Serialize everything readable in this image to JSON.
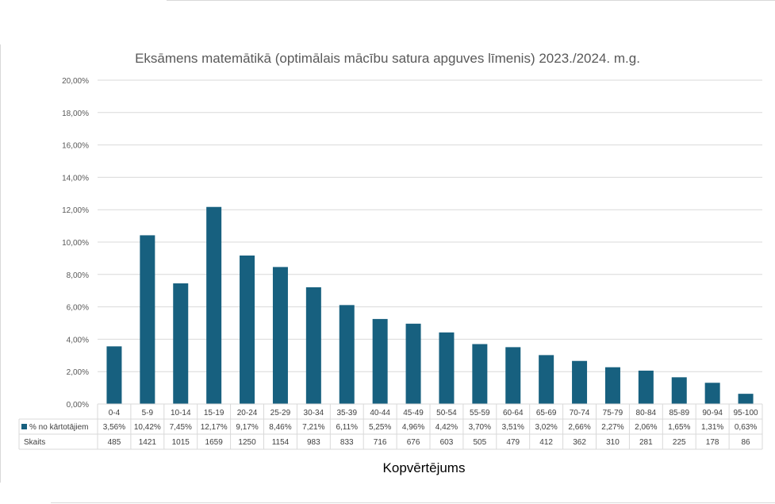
{
  "chart_data": {
    "type": "bar",
    "title": "Eksāmens matemātikā (optimālais mācību satura apguves līmenis) 2023./2024. m.g.",
    "xlabel": "Kopvērtējums",
    "ylabel": "",
    "ylim": [
      0,
      20
    ],
    "ytick_labels": [
      "0,00%",
      "2,00%",
      "4,00%",
      "6,00%",
      "8,00%",
      "10,00%",
      "12,00%",
      "14,00%",
      "16,00%",
      "18,00%",
      "20,00%"
    ],
    "grid": true,
    "categories": [
      "0-4",
      "5-9",
      "10-14",
      "15-19",
      "20-24",
      "25-29",
      "30-34",
      "35-39",
      "40-44",
      "45-49",
      "50-54",
      "55-59",
      "60-64",
      "65-69",
      "70-74",
      "75-79",
      "80-84",
      "85-89",
      "90-94",
      "95-100"
    ],
    "series": [
      {
        "name": "% no kārtotājiem",
        "color": "#17607f",
        "values": [
          3.56,
          10.42,
          7.45,
          12.17,
          9.17,
          8.46,
          7.21,
          6.11,
          5.25,
          4.96,
          4.42,
          3.7,
          3.51,
          3.02,
          2.66,
          2.27,
          2.06,
          1.65,
          1.31,
          0.63
        ],
        "labels": [
          "3,56%",
          "10,42%",
          "7,45%",
          "12,17%",
          "9,17%",
          "8,46%",
          "7,21%",
          "6,11%",
          "5,25%",
          "4,96%",
          "4,42%",
          "3,70%",
          "3,51%",
          "3,02%",
          "2,66%",
          "2,27%",
          "2,06%",
          "1,65%",
          "1,31%",
          "0,63%"
        ]
      }
    ],
    "table_rows": [
      {
        "name": "Skaits",
        "values": [
          "485",
          "1421",
          "1015",
          "1659",
          "1250",
          "1154",
          "983",
          "833",
          "716",
          "676",
          "603",
          "505",
          "479",
          "412",
          "362",
          "310",
          "281",
          "225",
          "178",
          "86"
        ]
      }
    ]
  }
}
